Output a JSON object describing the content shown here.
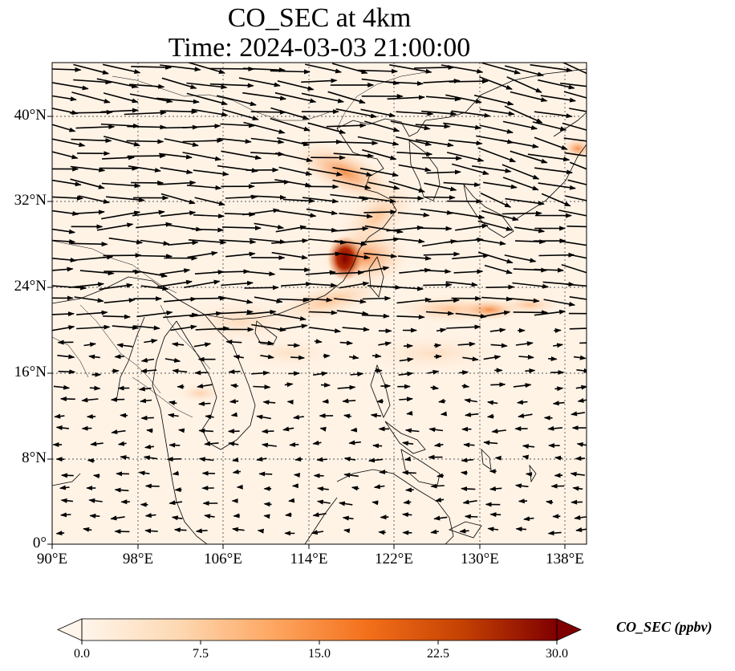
{
  "title": {
    "line1": "CO_SEC at 4km",
    "line2": "Time: 2024-03-03 21:00:00"
  },
  "map": {
    "lon_range": [
      90,
      140
    ],
    "lat_range": [
      0,
      45
    ],
    "lon_ticks": [
      "90°E",
      "98°E",
      "106°E",
      "114°E",
      "122°E",
      "130°E",
      "138°E"
    ],
    "lat_ticks": [
      "0°",
      "8°N",
      "16°N",
      "24°N",
      "32°N",
      "40°N"
    ],
    "gridlines": true,
    "field_colormap": [
      "#fff5eb",
      "#fdd0a2",
      "#fd8d3c",
      "#d94801",
      "#7f2704"
    ]
  },
  "colorbar": {
    "label": "CO_SEC (ppbv)",
    "ticks": [
      "0.0",
      "7.5",
      "15.0",
      "22.5",
      "30.0"
    ],
    "range": [
      0,
      30
    ],
    "extend": "both",
    "colors": [
      "#fff5eb",
      "#fdd9b4",
      "#fda762",
      "#f3701b",
      "#c54102",
      "#7f0000"
    ]
  }
}
